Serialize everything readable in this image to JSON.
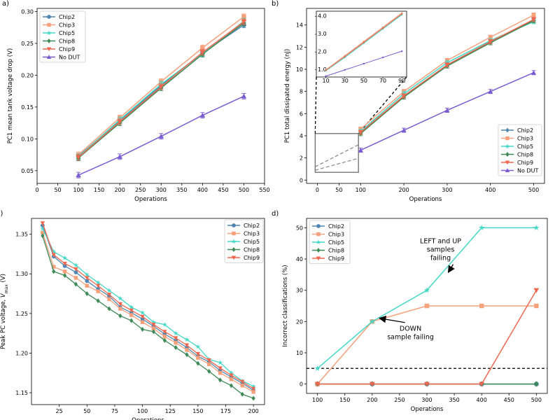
{
  "colors": {
    "Chip2": "#4f86b4",
    "Chip3": "#f6a07c",
    "Chip5": "#45d8c8",
    "Chip8": "#3e8a56",
    "Chip9": "#f0664e",
    "No DUT": "#7a5cd1"
  },
  "chart_data": [
    {
      "panel": "a)",
      "type": "line",
      "xlabel": "Operations",
      "ylabel": "PC1 mean tank voltage drop (V)",
      "xlim": [
        0,
        550
      ],
      "ylim": [
        0.03,
        0.305
      ],
      "xticks": [
        0,
        50,
        100,
        150,
        200,
        250,
        300,
        350,
        400,
        450,
        500,
        550
      ],
      "yticks": [
        0.05,
        0.1,
        0.15,
        0.2,
        0.25,
        0.3
      ],
      "ytick_labels": [
        "0.05",
        "0.10",
        "0.15",
        "0.20",
        "0.25",
        "0.30"
      ],
      "legend_position": "top-left",
      "x": [
        100,
        200,
        300,
        400,
        500
      ],
      "series": [
        {
          "name": "Chip2",
          "marker": "circle",
          "values": [
            0.073,
            0.129,
            0.184,
            0.235,
            0.279
          ]
        },
        {
          "name": "Chip3",
          "marker": "square",
          "values": [
            0.075,
            0.133,
            0.19,
            0.243,
            0.292
          ]
        },
        {
          "name": "Chip5",
          "marker": "star",
          "values": [
            0.072,
            0.13,
            0.186,
            0.234,
            0.285
          ]
        },
        {
          "name": "Chip8",
          "marker": "diamond",
          "values": [
            0.07,
            0.125,
            0.18,
            0.233,
            0.282
          ]
        },
        {
          "name": "Chip9",
          "marker": "triangle-down",
          "values": [
            0.071,
            0.127,
            0.182,
            0.236,
            0.284
          ]
        },
        {
          "name": "No DUT",
          "marker": "triangle-up",
          "values": [
            0.043,
            0.072,
            0.104,
            0.137,
            0.167
          ]
        }
      ]
    },
    {
      "panel": "b)",
      "type": "line",
      "xlabel": "Operations",
      "ylabel": "PC1 total dissipated energy (nJ)",
      "xlim": [
        -25,
        525
      ],
      "ylim": [
        -0.3,
        15.5
      ],
      "xticks": [
        0,
        50,
        100,
        200,
        300,
        400,
        500
      ],
      "yticks": [
        0,
        2,
        4,
        6,
        8,
        10,
        12,
        14
      ],
      "legend_position": "lower-right",
      "x": [
        100,
        200,
        300,
        400,
        500
      ],
      "series": [
        {
          "name": "Chip2",
          "marker": "diamond",
          "values": [
            4.3,
            7.6,
            10.4,
            12.5,
            14.4
          ]
        },
        {
          "name": "Chip3",
          "marker": "square",
          "values": [
            4.6,
            8.0,
            10.8,
            12.9,
            14.9
          ]
        },
        {
          "name": "Chip5",
          "marker": "star",
          "values": [
            4.4,
            7.8,
            10.6,
            12.6,
            14.3
          ]
        },
        {
          "name": "Chip8",
          "marker": "diamond",
          "values": [
            4.2,
            7.5,
            10.3,
            12.4,
            14.4
          ]
        },
        {
          "name": "Chip9",
          "marker": "triangle-down",
          "values": [
            4.3,
            7.6,
            10.4,
            12.5,
            14.5
          ]
        },
        {
          "name": "No DUT",
          "marker": "triangle-up",
          "values": [
            2.7,
            4.5,
            6.3,
            8.0,
            9.7
          ]
        }
      ],
      "inset": {
        "xlim": [
          0,
          95
        ],
        "ylim": [
          0.6,
          4.3
        ],
        "xticks": [
          10,
          30,
          50,
          70,
          90
        ],
        "yticks": [
          1.0,
          2.0,
          3.0,
          4.0
        ],
        "ytick_labels": [
          "1.0",
          "2.0",
          "3.0",
          "4.0"
        ],
        "x": [
          10,
          30,
          50,
          70,
          90
        ],
        "series": [
          {
            "name": "Chip3",
            "values": [
              1.0,
              1.8,
              2.6,
              3.4,
              4.2
            ]
          },
          {
            "name": "Chip5",
            "values": [
              0.95,
              1.7,
              2.5,
              3.3,
              4.1
            ]
          },
          {
            "name": "Chip9",
            "values": [
              0.98,
              1.75,
              2.55,
              3.35,
              4.15
            ]
          },
          {
            "name": "No DUT",
            "values": [
              0.65,
              1.0,
              1.35,
              1.7,
              2.05
            ]
          }
        ]
      }
    },
    {
      "panel": "c)",
      "type": "line",
      "xlabel": "Operations",
      "ylabel": "Peak PC voltage, Vmax (V)",
      "ylabel_main": "Peak PC voltage, ",
      "ylabel_var": "V",
      "ylabel_sub": "max",
      "ylabel_unit": " (V)",
      "xlim": [
        0,
        210
      ],
      "ylim": [
        1.135,
        1.37
      ],
      "xticks": [
        25,
        50,
        75,
        100,
        125,
        150,
        175,
        200
      ],
      "yticks": [
        1.15,
        1.2,
        1.25,
        1.3,
        1.35
      ],
      "ytick_labels": [
        "1.15",
        "1.20",
        "1.25",
        "1.30",
        "1.35"
      ],
      "legend_position": "top-right",
      "x": [
        10,
        20,
        30,
        40,
        50,
        60,
        70,
        80,
        90,
        100,
        110,
        120,
        130,
        140,
        150,
        160,
        170,
        180,
        190,
        200
      ],
      "series": [
        {
          "name": "Chip2",
          "marker": "circle",
          "values": [
            1.361,
            1.322,
            1.31,
            1.302,
            1.291,
            1.281,
            1.272,
            1.258,
            1.251,
            1.243,
            1.234,
            1.224,
            1.216,
            1.207,
            1.196,
            1.189,
            1.178,
            1.17,
            1.162,
            1.153
          ]
        },
        {
          "name": "Chip3",
          "marker": "square",
          "values": [
            1.352,
            1.309,
            1.303,
            1.295,
            1.285,
            1.278,
            1.268,
            1.256,
            1.248,
            1.239,
            1.231,
            1.221,
            1.213,
            1.204,
            1.194,
            1.186,
            1.175,
            1.167,
            1.159,
            1.151
          ]
        },
        {
          "name": "Chip5",
          "marker": "star",
          "values": [
            1.357,
            1.328,
            1.32,
            1.311,
            1.299,
            1.289,
            1.279,
            1.269,
            1.258,
            1.251,
            1.239,
            1.236,
            1.225,
            1.217,
            1.208,
            1.192,
            1.188,
            1.175,
            1.165,
            1.158
          ]
        },
        {
          "name": "Chip8",
          "marker": "diamond",
          "values": [
            1.348,
            1.303,
            1.298,
            1.287,
            1.275,
            1.266,
            1.256,
            1.247,
            1.241,
            1.23,
            1.227,
            1.216,
            1.207,
            1.198,
            1.187,
            1.177,
            1.166,
            1.159,
            1.148,
            1.143
          ]
        },
        {
          "name": "Chip9",
          "marker": "triangle-down",
          "values": [
            1.364,
            1.324,
            1.313,
            1.306,
            1.295,
            1.285,
            1.274,
            1.262,
            1.254,
            1.246,
            1.236,
            1.227,
            1.219,
            1.21,
            1.199,
            1.191,
            1.181,
            1.172,
            1.164,
            1.155
          ]
        }
      ]
    },
    {
      "panel": "d)",
      "type": "line",
      "xlabel": "Operations",
      "ylabel": "Incorrect classifications (%)",
      "xlim": [
        80,
        520
      ],
      "ylim": [
        -3,
        53
      ],
      "xticks": [
        100,
        150,
        200,
        250,
        300,
        350,
        400,
        450,
        500
      ],
      "yticks": [
        0,
        10,
        20,
        30,
        40,
        50
      ],
      "legend_position": "top-left",
      "threshold_line": 5,
      "x": [
        100,
        200,
        300,
        400,
        500
      ],
      "series": [
        {
          "name": "Chip2",
          "marker": "circle",
          "values": [
            0,
            0,
            0,
            0,
            0
          ]
        },
        {
          "name": "Chip3",
          "marker": "square",
          "values": [
            0,
            20,
            25,
            25,
            25
          ]
        },
        {
          "name": "Chip5",
          "marker": "star",
          "values": [
            5,
            20,
            30,
            50,
            50
          ]
        },
        {
          "name": "Chip8",
          "marker": "diamond",
          "values": [
            0,
            0,
            0,
            0,
            0
          ]
        },
        {
          "name": "Chip9",
          "marker": "triangle-down",
          "values": [
            0,
            0,
            0,
            0,
            30
          ]
        }
      ],
      "annotations": [
        {
          "lines": [
            "LEFT and UP",
            "samples",
            "failing"
          ],
          "x": 325,
          "y": 45,
          "arrow_to": [
            340,
            36
          ]
        },
        {
          "lines": [
            "DOWN",
            "sample failing"
          ],
          "x": 270,
          "y": 17,
          "arrow_to": [
            215,
            21
          ]
        }
      ]
    }
  ]
}
